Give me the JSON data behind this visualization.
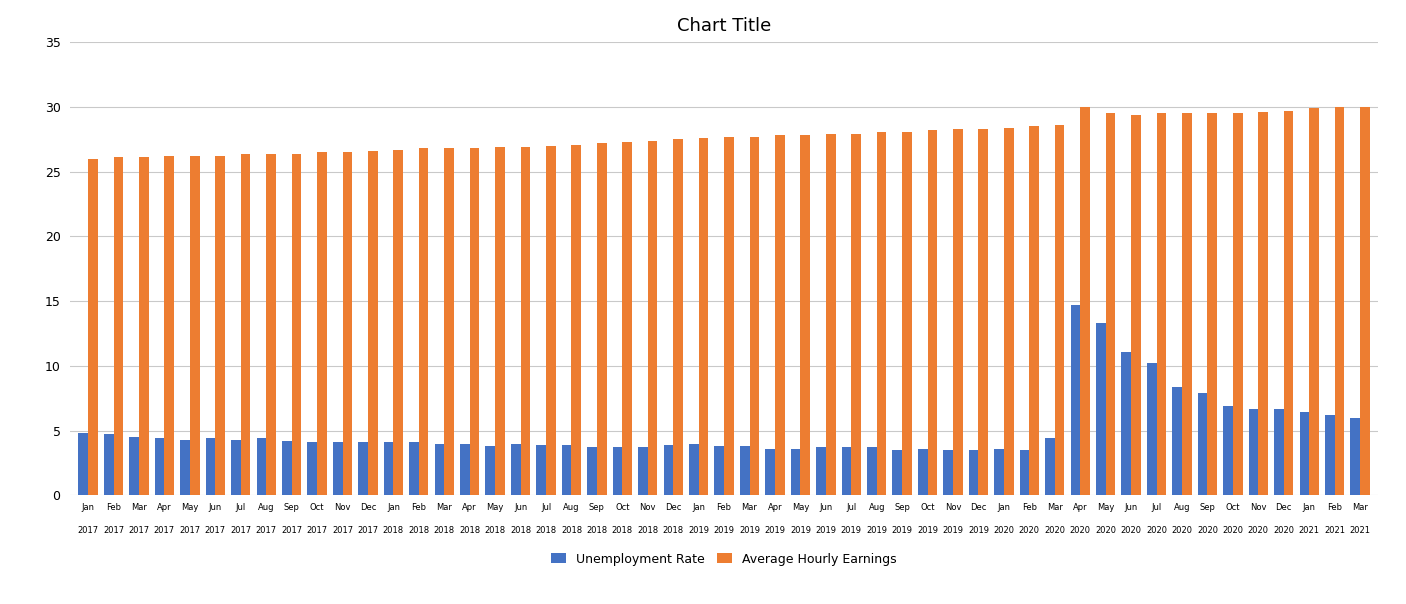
{
  "title": "Chart Title",
  "legend_labels": [
    "Unemployment Rate",
    "Average Hourly Earnings"
  ],
  "bar_colors": [
    "#4472C4",
    "#ED7D31"
  ],
  "background_color": "#FFFFFF",
  "grid_color": "#C9C9C9",
  "ylim": [
    0,
    35
  ],
  "yticks": [
    0,
    5,
    10,
    15,
    20,
    25,
    30,
    35
  ],
  "months": [
    "Jan",
    "Feb",
    "Mar",
    "Apr",
    "May",
    "Jun",
    "Jul",
    "Aug",
    "Sep",
    "Oct",
    "Nov",
    "Dec",
    "Jan",
    "Feb",
    "Mar",
    "Apr",
    "May",
    "Jun",
    "Jul",
    "Aug",
    "Sep",
    "Oct",
    "Nov",
    "Dec",
    "Jan",
    "Feb",
    "Mar",
    "Apr",
    "May",
    "Jun",
    "Jul",
    "Aug",
    "Sep",
    "Oct",
    "Nov",
    "Dec",
    "Jan",
    "Feb",
    "Mar",
    "Apr",
    "May",
    "Jun",
    "Jul",
    "Aug",
    "Sep",
    "Oct",
    "Nov",
    "Dec",
    "Jan",
    "Feb",
    "Mar"
  ],
  "years": [
    "2017",
    "2017",
    "2017",
    "2017",
    "2017",
    "2017",
    "2017",
    "2017",
    "2017",
    "2017",
    "2017",
    "2017",
    "2018",
    "2018",
    "2018",
    "2018",
    "2018",
    "2018",
    "2018",
    "2018",
    "2018",
    "2018",
    "2018",
    "2018",
    "2019",
    "2019",
    "2019",
    "2019",
    "2019",
    "2019",
    "2019",
    "2019",
    "2019",
    "2019",
    "2019",
    "2019",
    "2020",
    "2020",
    "2020",
    "2020",
    "2020",
    "2020",
    "2020",
    "2020",
    "2020",
    "2020",
    "2020",
    "2020",
    "2021",
    "2021",
    "2021"
  ],
  "unemployment_rate": [
    4.8,
    4.7,
    4.5,
    4.4,
    4.3,
    4.4,
    4.3,
    4.4,
    4.2,
    4.1,
    4.1,
    4.1,
    4.1,
    4.1,
    4.0,
    4.0,
    3.8,
    4.0,
    3.9,
    3.9,
    3.7,
    3.7,
    3.7,
    3.9,
    4.0,
    3.8,
    3.8,
    3.6,
    3.6,
    3.7,
    3.7,
    3.7,
    3.5,
    3.6,
    3.5,
    3.5,
    3.6,
    3.5,
    4.4,
    14.7,
    13.3,
    11.1,
    10.2,
    8.4,
    7.9,
    6.9,
    6.7,
    6.7,
    6.4,
    6.2,
    6.0
  ],
  "avg_hourly_earnings": [
    26.0,
    26.1,
    26.1,
    26.2,
    26.2,
    26.2,
    26.4,
    26.4,
    26.4,
    26.5,
    26.5,
    26.6,
    26.7,
    26.8,
    26.8,
    26.8,
    26.9,
    26.9,
    27.0,
    27.1,
    27.2,
    27.3,
    27.4,
    27.5,
    27.6,
    27.7,
    27.7,
    27.8,
    27.8,
    27.9,
    27.9,
    28.1,
    28.1,
    28.2,
    28.3,
    28.3,
    28.4,
    28.5,
    28.6,
    30.0,
    29.5,
    29.4,
    29.5,
    29.5,
    29.5,
    29.5,
    29.6,
    29.7,
    29.9,
    30.0,
    30.0
  ]
}
